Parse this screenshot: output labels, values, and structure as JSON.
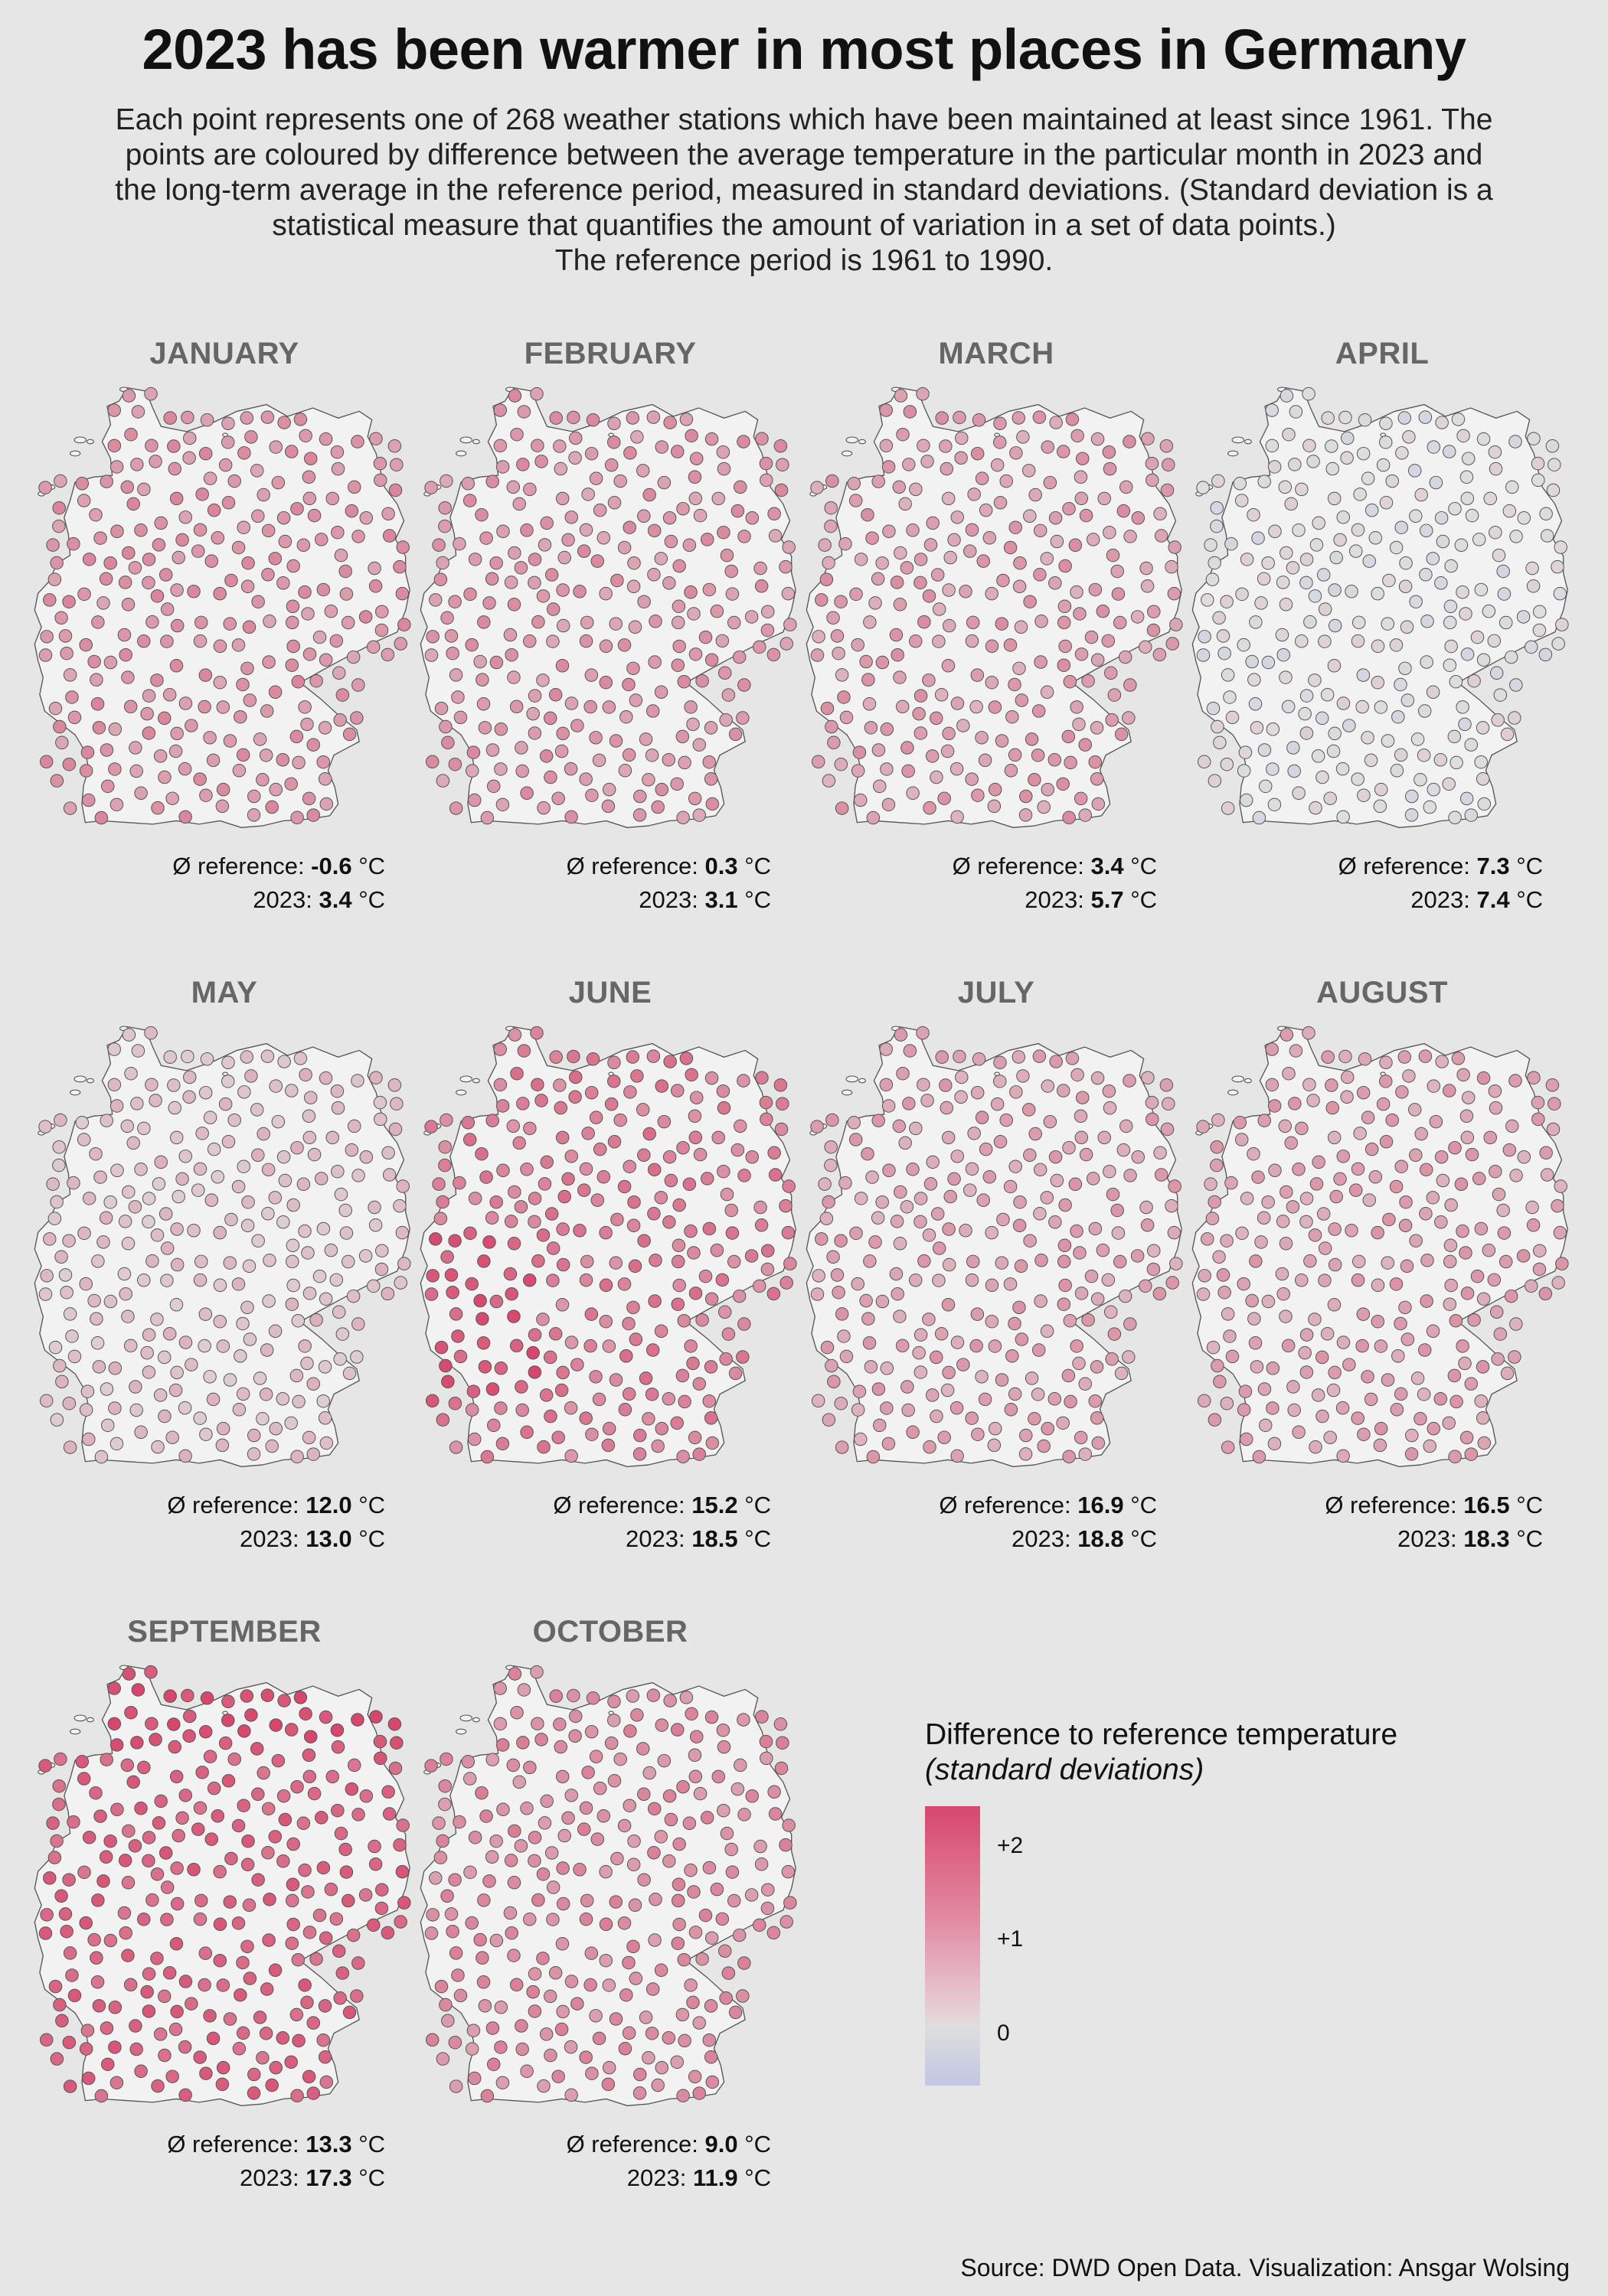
{
  "header": {
    "title": "2023 has been warmer in most places in Germany",
    "subtitle": [
      "Each point represents one of 268 weather stations which have been maintained at least since 1961. The",
      "points are coloured by difference between the average temperature in the particular month in 2023 and",
      "the long-term average in the reference period, measured in standard deviations. (Standard deviation is a",
      "statistical measure that quantifies the amount of variation in a set of data points.)",
      "The reference period is 1961 to 1990."
    ]
  },
  "labels": {
    "reference_prefix": "Ø reference: ",
    "year_prefix": "2023: ",
    "unit": " °C"
  },
  "months": [
    {
      "name": "JANUARY",
      "reference": "-0.6",
      "value_2023": "3.4",
      "mean_sd": 1.05,
      "spread": 0.25
    },
    {
      "name": "FEBRUARY",
      "reference": "0.3",
      "value_2023": "3.1",
      "mean_sd": 1.0,
      "spread": 0.25
    },
    {
      "name": "MARCH",
      "reference": "3.4",
      "value_2023": "5.7",
      "mean_sd": 0.9,
      "spread": 0.28
    },
    {
      "name": "APRIL",
      "reference": "7.3",
      "value_2023": "7.4",
      "mean_sd": 0.03,
      "spread": 0.2
    },
    {
      "name": "MAY",
      "reference": "12.0",
      "value_2023": "13.0",
      "mean_sd": 0.45,
      "spread": 0.22
    },
    {
      "name": "JUNE",
      "reference": "15.2",
      "value_2023": "18.5",
      "mean_sd": 1.35,
      "spread": 0.3
    },
    {
      "name": "JULY",
      "reference": "16.9",
      "value_2023": "18.8",
      "mean_sd": 0.85,
      "spread": 0.25
    },
    {
      "name": "AUGUST",
      "reference": "16.5",
      "value_2023": "18.3",
      "mean_sd": 0.85,
      "spread": 0.25
    },
    {
      "name": "SEPTEMBER",
      "reference": "13.3",
      "value_2023": "17.3",
      "mean_sd": 1.75,
      "spread": 0.25
    },
    {
      "name": "OCTOBER",
      "reference": "9.0",
      "value_2023": "11.9",
      "mean_sd": 1.15,
      "spread": 0.25
    }
  ],
  "legend": {
    "title": "Difference to reference temperature",
    "subtitle": "(standard deviations)",
    "ticks": [
      {
        "label": "+2",
        "value": 2
      },
      {
        "label": "+1",
        "value": 1
      },
      {
        "label": "0",
        "value": 0
      }
    ],
    "range": [
      -0.6,
      2.2
    ]
  },
  "colors": {
    "background": "#e6e6e6",
    "map_fill": "#f2f2f2",
    "map_stroke": "#555555",
    "positive": "#d7476d",
    "neutral": "#dedede",
    "negative": "#b7bde3",
    "month_title": "#666666"
  },
  "source": "Source: DWD Open Data. Visualization: Ansgar Wolsing",
  "station_count": 268
}
